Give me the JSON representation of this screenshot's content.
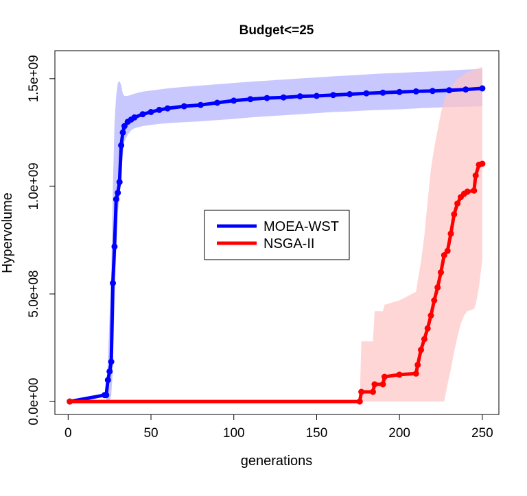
{
  "chart_data": {
    "type": "line",
    "title": "Budget<=25",
    "xlabel": "generations",
    "ylabel": "Hypervolume",
    "xlim": [
      -8,
      260
    ],
    "ylim": [
      -60000000,
      1630000000
    ],
    "xticks": [
      0,
      50,
      100,
      150,
      200,
      250
    ],
    "xtick_labels": [
      "0",
      "50",
      "100",
      "150",
      "200",
      "250"
    ],
    "yticks": [
      0,
      500000000,
      1000000000,
      1500000000
    ],
    "ytick_labels": [
      "0.0e+00",
      "5.0e+08",
      "1.0e+09",
      "1.5e+09"
    ],
    "legend_position": "center",
    "series": [
      {
        "name": "MOEA-WST",
        "color": "#0000ff",
        "band_color": "#b0b0ff",
        "x": [
          1,
          22,
          23,
          24,
          25,
          26,
          27,
          28,
          29,
          30,
          31,
          32,
          33,
          34,
          36,
          38,
          40,
          45,
          50,
          55,
          60,
          70,
          80,
          90,
          100,
          110,
          120,
          130,
          140,
          150,
          160,
          170,
          180,
          190,
          200,
          210,
          220,
          230,
          240,
          250
        ],
        "y": [
          0,
          30000000,
          30000000,
          100000000,
          140000000,
          185000000,
          550000000,
          720000000,
          940000000,
          970000000,
          1020000000,
          1190000000,
          1250000000,
          1280000000,
          1300000000,
          1310000000,
          1320000000,
          1335000000,
          1345000000,
          1355000000,
          1362000000,
          1372000000,
          1378000000,
          1388000000,
          1398000000,
          1405000000,
          1410000000,
          1413000000,
          1418000000,
          1420000000,
          1424000000,
          1428000000,
          1432000000,
          1435000000,
          1438000000,
          1441000000,
          1443000000,
          1446000000,
          1450000000,
          1455000000
        ],
        "lower": [
          0,
          0,
          0,
          0,
          0,
          30000000,
          150000000,
          450000000,
          700000000,
          880000000,
          940000000,
          1050000000,
          1150000000,
          1210000000,
          1240000000,
          1260000000,
          1270000000,
          1280000000,
          1285000000,
          1290000000,
          1293000000,
          1298000000,
          1302000000,
          1308000000,
          1313000000,
          1320000000,
          1325000000,
          1330000000,
          1335000000,
          1340000000,
          1345000000,
          1348000000,
          1352000000,
          1355000000,
          1358000000,
          1362000000,
          1365000000,
          1368000000,
          1370000000,
          1372000000
        ],
        "upper": [
          0,
          0,
          0,
          200000000,
          400000000,
          600000000,
          1000000000,
          1300000000,
          1420000000,
          1480000000,
          1490000000,
          1470000000,
          1430000000,
          1420000000,
          1420000000,
          1425000000,
          1430000000,
          1440000000,
          1445000000,
          1450000000,
          1455000000,
          1462000000,
          1468000000,
          1474000000,
          1480000000,
          1486000000,
          1491000000,
          1496000000,
          1501000000,
          1506000000,
          1511000000,
          1515000000,
          1520000000,
          1524000000,
          1527000000,
          1531000000,
          1534000000,
          1538000000,
          1542000000,
          1545000000
        ]
      },
      {
        "name": "NSGA-II",
        "color": "#ff0000",
        "band_color": "#ffc4c4",
        "x": [
          1,
          176,
          177,
          184,
          185,
          190,
          191,
          200,
          210,
          211,
          213,
          215,
          217,
          219,
          221,
          223,
          225,
          227,
          229,
          231,
          233,
          235,
          237,
          239,
          241,
          245,
          246,
          248,
          250
        ],
        "y": [
          0,
          0,
          45000000,
          45000000,
          80000000,
          80000000,
          115000000,
          125000000,
          130000000,
          170000000,
          240000000,
          290000000,
          340000000,
          400000000,
          470000000,
          530000000,
          600000000,
          680000000,
          700000000,
          780000000,
          870000000,
          920000000,
          950000000,
          965000000,
          975000000,
          980000000,
          1050000000,
          1100000000,
          1105000000
        ],
        "lower": [
          0,
          0,
          0,
          0,
          0,
          0,
          0,
          0,
          0,
          0,
          0,
          0,
          0,
          0,
          0,
          0,
          0,
          0,
          80000000,
          150000000,
          230000000,
          300000000,
          360000000,
          400000000,
          420000000,
          430000000,
          450000000,
          530000000,
          660000000
        ],
        "upper": [
          0,
          0,
          280000000,
          280000000,
          420000000,
          420000000,
          450000000,
          470000000,
          510000000,
          560000000,
          650000000,
          770000000,
          930000000,
          1080000000,
          1180000000,
          1260000000,
          1340000000,
          1400000000,
          1430000000,
          1460000000,
          1480000000,
          1500000000,
          1510000000,
          1520000000,
          1530000000,
          1540000000,
          1545000000,
          1550000000,
          1555000000
        ]
      }
    ]
  }
}
